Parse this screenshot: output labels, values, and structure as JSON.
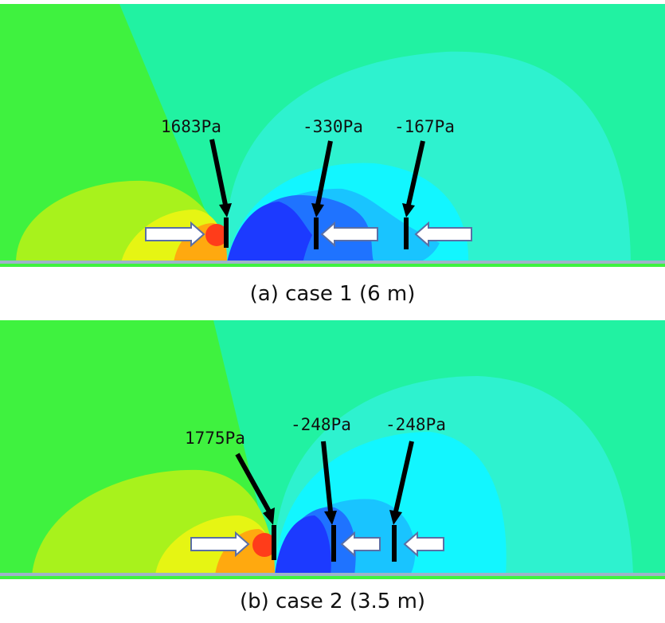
{
  "panels": [
    {
      "caption": "(a) case 1 (6 m)",
      "labels": [
        "1683Pa",
        "-330Pa",
        "-167Pa"
      ]
    },
    {
      "caption": "(b) case 2 (3.5 m)",
      "labels": [
        "1775Pa",
        "-248Pa",
        "-248Pa"
      ]
    }
  ],
  "colors": {
    "field_green": "#3ff23f",
    "field_seafoam": "#21f2a2",
    "field_aqua": "#2ef2cf",
    "field_cyan": "#12f6ff",
    "field_lightblue": "#19c4ff",
    "field_midblue": "#1f73ff",
    "field_blue": "#1c3aff",
    "field_yellowgreen": "#a8f21c",
    "field_yellow": "#e6f513",
    "field_orange": "#ffa90f",
    "field_red": "#ff3c1a",
    "arrow_fill": "#ffffff",
    "arrow_stroke": "#5a6fa6"
  }
}
